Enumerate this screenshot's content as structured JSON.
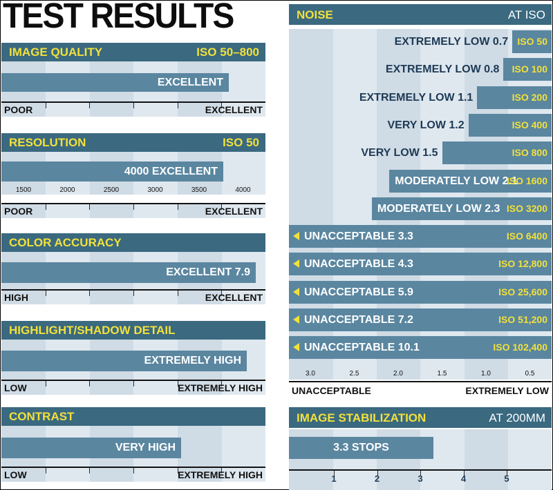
{
  "title": "TEST RESULTS",
  "colors": {
    "header": "#3a6980",
    "bar": "#5a86a0",
    "band_a": "#cfdbe5",
    "band_b": "#dfe8ef",
    "accent": "#f2e13a"
  },
  "chart_data": [
    {
      "type": "bar",
      "title": "IMAGE QUALITY",
      "header_value": "ISO 50–800",
      "bar_label": "EXCELLENT",
      "value": 0.86,
      "scale_left": "POOR",
      "scale_right": "EXCELLENT"
    },
    {
      "type": "bar",
      "title": "RESOLUTION",
      "header_value": "ISO 50",
      "bar_label": "4000  EXCELLENT",
      "value": 4000,
      "ticks": [
        "1500",
        "2000",
        "2500",
        "3000",
        "3500",
        "4000"
      ],
      "scale_left": "POOR",
      "scale_right": "EXCELLENT"
    },
    {
      "type": "bar",
      "title": "COLOR ACCURACY",
      "bar_label": "EXCELLENT 7.9",
      "value": 7.9,
      "scale_left": "HIGH",
      "scale_right": "EXCELLENT"
    },
    {
      "type": "bar",
      "title": "HIGHLIGHT/SHADOW DETAIL",
      "bar_label": "EXTREMELY HIGH",
      "value": 0.93,
      "scale_left": "LOW",
      "scale_right": "EXTREMELY HIGH"
    },
    {
      "type": "bar",
      "title": "CONTRAST",
      "bar_label": "VERY HIGH",
      "value": 0.68,
      "scale_left": "LOW",
      "scale_right": "EXTREMELY HIGH"
    },
    {
      "type": "bar",
      "title": "NOISE",
      "header_value": "AT ISO",
      "categories": [
        "ISO 50",
        "ISO 100",
        "ISO 200",
        "ISO 400",
        "ISO 800",
        "ISO 1600",
        "ISO 3200",
        "ISO 6400",
        "ISO 12,800",
        "ISO 25,600",
        "ISO 51,200",
        "ISO 102,400"
      ],
      "labels": [
        "EXTREMELY LOW 0.7",
        "EXTREMELY LOW 0.8",
        "EXTREMELY LOW 1.1",
        "VERY LOW 1.2",
        "VERY LOW 1.5",
        "MODERATELY LOW 2.1",
        "MODERATELY LOW 2.3",
        "UNACCEPTABLE 3.3",
        "UNACCEPTABLE 4.3",
        "UNACCEPTABLE 5.9",
        "UNACCEPTABLE 7.2",
        "UNACCEPTABLE 10.1"
      ],
      "values": [
        0.7,
        0.8,
        1.1,
        1.2,
        1.5,
        2.1,
        2.3,
        3.3,
        4.3,
        5.9,
        7.2,
        10.1
      ],
      "ticks": [
        "3.0",
        "2.5",
        "2.0",
        "1.5",
        "1.0",
        "0.5"
      ],
      "tick_values": [
        3.0,
        2.5,
        2.0,
        1.5,
        1.0,
        0.5
      ],
      "scale_left": "UNACCEPTABLE",
      "scale_right": "EXTREMELY LOW"
    },
    {
      "type": "bar",
      "title": "IMAGE STABILIZATION",
      "header_value": "AT 200MM",
      "bar_label": "3.3 STOPS",
      "value": 3.3,
      "ticks": [
        "1",
        "2",
        "3",
        "4",
        "5"
      ],
      "tick_values": [
        1,
        2,
        3,
        4,
        5
      ]
    }
  ]
}
